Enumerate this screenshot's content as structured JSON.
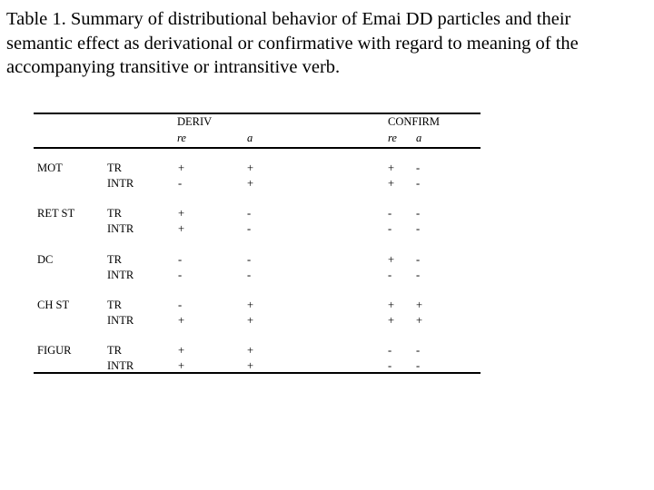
{
  "title": "Table 1. Summary of distributional behavior of Emai DD particles and their semantic effect as derivational or confirmative with regard to meaning of the accompanying transitive or intransitive verb.",
  "table": {
    "groups": [
      "DERIV",
      "CONFIRM"
    ],
    "subheaders": [
      "re",
      "a",
      "re",
      "a"
    ],
    "rows": [
      {
        "label": "MOT",
        "verbs": [
          "TR",
          "INTR"
        ],
        "values": [
          [
            "+",
            "+",
            "+",
            "-"
          ],
          [
            "-",
            "+",
            "+",
            "-"
          ]
        ]
      },
      {
        "label": "RET ST",
        "verbs": [
          "TR",
          "INTR"
        ],
        "values": [
          [
            "+",
            "-",
            "-",
            "-"
          ],
          [
            "+",
            "-",
            "-",
            "-"
          ]
        ]
      },
      {
        "label": "DC",
        "verbs": [
          "TR",
          "INTR"
        ],
        "values": [
          [
            "-",
            "-",
            "+",
            "-"
          ],
          [
            "-",
            "-",
            "-",
            "-"
          ]
        ]
      },
      {
        "label": "CH ST",
        "verbs": [
          "TR",
          "INTR"
        ],
        "values": [
          [
            "-",
            "+",
            "+",
            "+"
          ],
          [
            "+",
            "+",
            "+",
            "+"
          ]
        ]
      },
      {
        "label": "FIGUR",
        "verbs": [
          "TR",
          "INTR"
        ],
        "values": [
          [
            "+",
            "+",
            "-",
            "-"
          ],
          [
            "+",
            "+",
            "-",
            "-"
          ]
        ]
      }
    ]
  }
}
